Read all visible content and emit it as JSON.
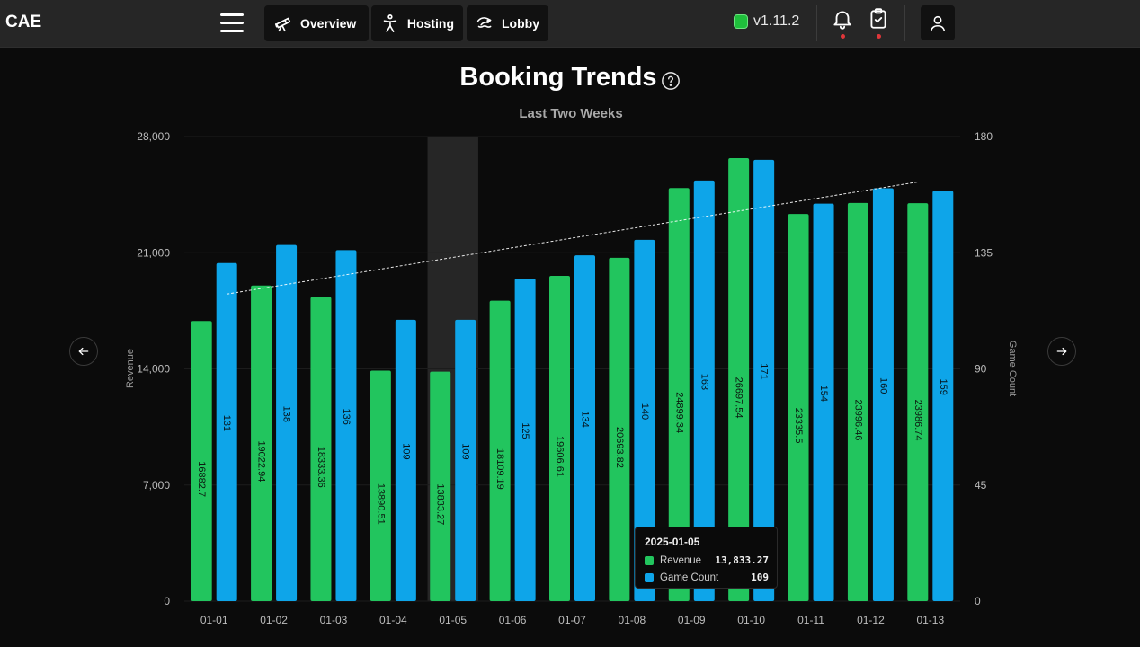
{
  "header": {
    "brand": "CAE",
    "nav": [
      {
        "label": "Overview",
        "icon": "telescope-icon"
      },
      {
        "label": "Hosting",
        "icon": "person-icon"
      },
      {
        "label": "Lobby",
        "icon": "pool-icon"
      }
    ],
    "version": "v1.11.2",
    "status_color": "#1fbf3c"
  },
  "chart_data": {
    "type": "bar",
    "title": "Booking Trends",
    "subtitle": "Last Two Weeks",
    "categories": [
      "01-01",
      "01-02",
      "01-03",
      "01-04",
      "01-05",
      "01-06",
      "01-07",
      "01-08",
      "01-09",
      "01-10",
      "01-11",
      "01-12",
      "01-13"
    ],
    "series": [
      {
        "name": "Revenue",
        "axis": "left",
        "color": "#22c55e",
        "values": [
          16882.7,
          19022.94,
          18333.36,
          13890.51,
          13833.27,
          18109.19,
          19606.61,
          20693.82,
          24899.34,
          26697.54,
          23335.5,
          23996.46,
          23986.74
        ],
        "labels": [
          "16882.7",
          "19022.94",
          "18333.36",
          "13890.51",
          "13833.27",
          "18109.19",
          "19606.61",
          "20693.82",
          "24899.34",
          "26697.54",
          "23335.5",
          "23996.46",
          "23986.74"
        ]
      },
      {
        "name": "Game Count",
        "axis": "right",
        "color": "#0ea5e9",
        "values": [
          131,
          138,
          136,
          109,
          109,
          125,
          134,
          140,
          163,
          171,
          154,
          160,
          159
        ],
        "labels": [
          "131",
          "138",
          "136",
          "109",
          "109",
          "125",
          "134",
          "140",
          "163",
          "171",
          "154",
          "160",
          "159"
        ]
      }
    ],
    "ylabel": "Revenue",
    "y2label": "Game Count",
    "ylim": [
      0,
      28000
    ],
    "y2lim": [
      0,
      180
    ],
    "yticks": [
      "0",
      "7,000",
      "14,000",
      "21,000",
      "28,000"
    ],
    "y2ticks": [
      "0",
      "45",
      "90",
      "135",
      "180"
    ],
    "trendline": "dashed white over Game Count",
    "highlighted_category": "01-05",
    "grid": true
  },
  "tooltip": {
    "date": "2025-01-05",
    "rows": [
      {
        "label": "Revenue",
        "value": "13,833.27",
        "color": "#22c55e"
      },
      {
        "label": "Game Count",
        "value": "109",
        "color": "#0ea5e9"
      }
    ]
  }
}
